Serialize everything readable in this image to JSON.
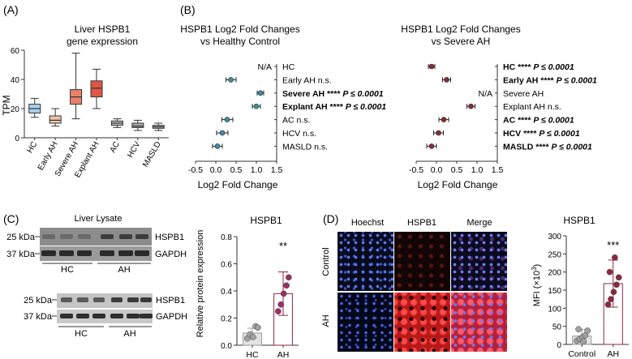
{
  "chart_data": [
    {
      "type": "box",
      "panel": "(A)",
      "title": "Liver HSPB1",
      "subtitle": "gene expression",
      "ylabel": "TPM",
      "ylim": [
        0,
        60
      ],
      "yticks": [
        0,
        20,
        40,
        60
      ],
      "categories": [
        "HC",
        "Early AH",
        "Severe AH",
        "Explant AH",
        "AC",
        "HCV",
        "MASLD"
      ],
      "colors": [
        "#a9d1ef",
        "#f1c4aa",
        "#e9826a",
        "#df5645",
        "#bcbcbc",
        "#a9a9a9",
        "#b5b5b5"
      ],
      "boxes": [
        {
          "min": 14,
          "q1": 17,
          "median": 20,
          "q3": 23,
          "max": 27
        },
        {
          "min": 8,
          "q1": 10,
          "median": 12,
          "q3": 15,
          "max": 20
        },
        {
          "min": 13,
          "q1": 23,
          "median": 28,
          "q3": 33,
          "max": 58
        },
        {
          "min": 20,
          "q1": 28,
          "median": 34,
          "q3": 39,
          "max": 47
        },
        {
          "min": 7,
          "q1": 8.5,
          "median": 10,
          "q3": 11.5,
          "max": 13
        },
        {
          "min": 5,
          "q1": 7,
          "median": 8,
          "q3": 10,
          "max": 12
        },
        {
          "min": 5,
          "q1": 6.5,
          "median": 7.5,
          "q3": 8.5,
          "max": 10
        }
      ]
    },
    {
      "type": "forest",
      "panel": "(B)",
      "title": "HSPB1 Log2 Fold Changes",
      "subtitle": "vs Healthy Control",
      "xlabel": "Log2 Fold Change",
      "xlim": [
        -0.5,
        1.5
      ],
      "xticks": [
        "-0.5",
        "0.0",
        "0.5",
        "1.0",
        "1.5"
      ],
      "color": "#3f8fa5",
      "rows": [
        {
          "label": "HC",
          "annotation": "",
          "bold": false,
          "na": true,
          "value": null,
          "lo": null,
          "hi": null
        },
        {
          "label": "Early AH",
          "annotation": "n.s.",
          "bold": false,
          "na": false,
          "value": 0.37,
          "lo": 0.25,
          "hi": 0.5
        },
        {
          "label": "Severe AH",
          "annotation": "****",
          "bold": true,
          "na": false,
          "value": 1.1,
          "lo": 1.02,
          "hi": 1.18
        },
        {
          "label": "Explant AH",
          "annotation": "****",
          "bold": true,
          "na": false,
          "value": 1.0,
          "lo": 0.9,
          "hi": 1.1
        },
        {
          "label": "AC",
          "annotation": "n.s.",
          "bold": false,
          "na": false,
          "value": 0.28,
          "lo": 0.15,
          "hi": 0.42
        },
        {
          "label": "HCV",
          "annotation": "n.s.",
          "bold": false,
          "na": false,
          "value": 0.16,
          "lo": 0.02,
          "hi": 0.3
        },
        {
          "label": "MASLD",
          "annotation": "n.s.",
          "bold": false,
          "na": false,
          "value": 0.04,
          "lo": -0.08,
          "hi": 0.16
        }
      ],
      "na_text": "N/A",
      "p_text": "P ≤ 0.0001"
    },
    {
      "type": "forest",
      "panel": "",
      "title": "HSPB1 Log2 Fold Changes",
      "subtitle": "vs Severe AH",
      "xlabel": "Log2 Fold Change",
      "xlim": [
        -0.5,
        1.5
      ],
      "xticks": [
        "-0.5",
        "0.0",
        "0.5",
        "1.0",
        "1.5"
      ],
      "color": "#8a2b3a",
      "rows": [
        {
          "label": "HC",
          "annotation": "****",
          "bold": true,
          "na": false,
          "value": -0.12,
          "lo": -0.2,
          "hi": -0.04
        },
        {
          "label": "Early AH",
          "annotation": "****",
          "bold": true,
          "na": false,
          "value": 0.25,
          "lo": 0.15,
          "hi": 0.35
        },
        {
          "label": "Severe AH",
          "annotation": "",
          "bold": false,
          "na": true,
          "value": null,
          "lo": null,
          "hi": null
        },
        {
          "label": "Explant AH",
          "annotation": "n.s.",
          "bold": false,
          "na": false,
          "value": 0.85,
          "lo": 0.75,
          "hi": 0.95
        },
        {
          "label": "AC",
          "annotation": "****",
          "bold": true,
          "na": false,
          "value": 0.18,
          "lo": 0.06,
          "hi": 0.3
        },
        {
          "label": "HCV",
          "annotation": "****",
          "bold": true,
          "na": false,
          "value": 0.05,
          "lo": -0.07,
          "hi": 0.17
        },
        {
          "label": "MASLD",
          "annotation": "****",
          "bold": true,
          "na": false,
          "value": -0.12,
          "lo": -0.24,
          "hi": 0.0
        }
      ],
      "na_text": "N/A",
      "p_text": "P ≤ 0.0001"
    },
    {
      "type": "bar",
      "panel": "(C)",
      "title": "HSPB1",
      "ylabel": "Relative protein expression",
      "ylim": [
        0,
        0.8
      ],
      "yticks": [
        "0.0",
        "0.2",
        "0.4",
        "0.6",
        "0.8"
      ],
      "categories": [
        "HC",
        "AH"
      ],
      "values": [
        0.09,
        0.38
      ],
      "errors": [
        0.035,
        0.16
      ],
      "points": [
        [
          0.05,
          0.08,
          0.06,
          0.14,
          0.13
        ],
        [
          0.25,
          0.3,
          0.38,
          0.44,
          0.5
        ]
      ],
      "significance": "**",
      "bar_colors": [
        "#e3e3e3",
        "#ffffff"
      ],
      "edge_colors": [
        "#999999",
        "#8b2940"
      ],
      "point_colors": [
        "#a0a0a0",
        "#9c2f67"
      ]
    },
    {
      "type": "bar",
      "panel": "(D)",
      "title": "HSPB1",
      "ylabel": "MFI (×10",
      "ylabel_sup": "3",
      "ylabel_end": ")",
      "ylim": [
        0,
        300
      ],
      "yticks": [
        "0",
        "50",
        "100",
        "150",
        "200",
        "250",
        "300"
      ],
      "categories": [
        "Control",
        "AH"
      ],
      "values": [
        23,
        168
      ],
      "errors": [
        18,
        65
      ],
      "points": [
        [
          10,
          15,
          20,
          25,
          38,
          42,
          8
        ],
        [
          110,
          125,
          145,
          165,
          185,
          200,
          240
        ]
      ],
      "significance": "***",
      "bar_colors": [
        "#e3e3e3",
        "#ffffff"
      ],
      "edge_colors": [
        "#999999",
        "#8b2940"
      ],
      "point_colors": [
        "#a0a0a0",
        "#8b2940"
      ]
    }
  ],
  "western": {
    "title": "Liver Lysate",
    "kda25": "25 kDa",
    "kda37": "37 kDa",
    "band1": "HSPB1",
    "band2": "GAPDH",
    "group_hc": "HC",
    "group_ah": "AH"
  },
  "micro": {
    "columns": [
      "Hoechst",
      "HSPB1",
      "Merge"
    ],
    "rows": [
      "Control",
      "AH"
    ]
  }
}
